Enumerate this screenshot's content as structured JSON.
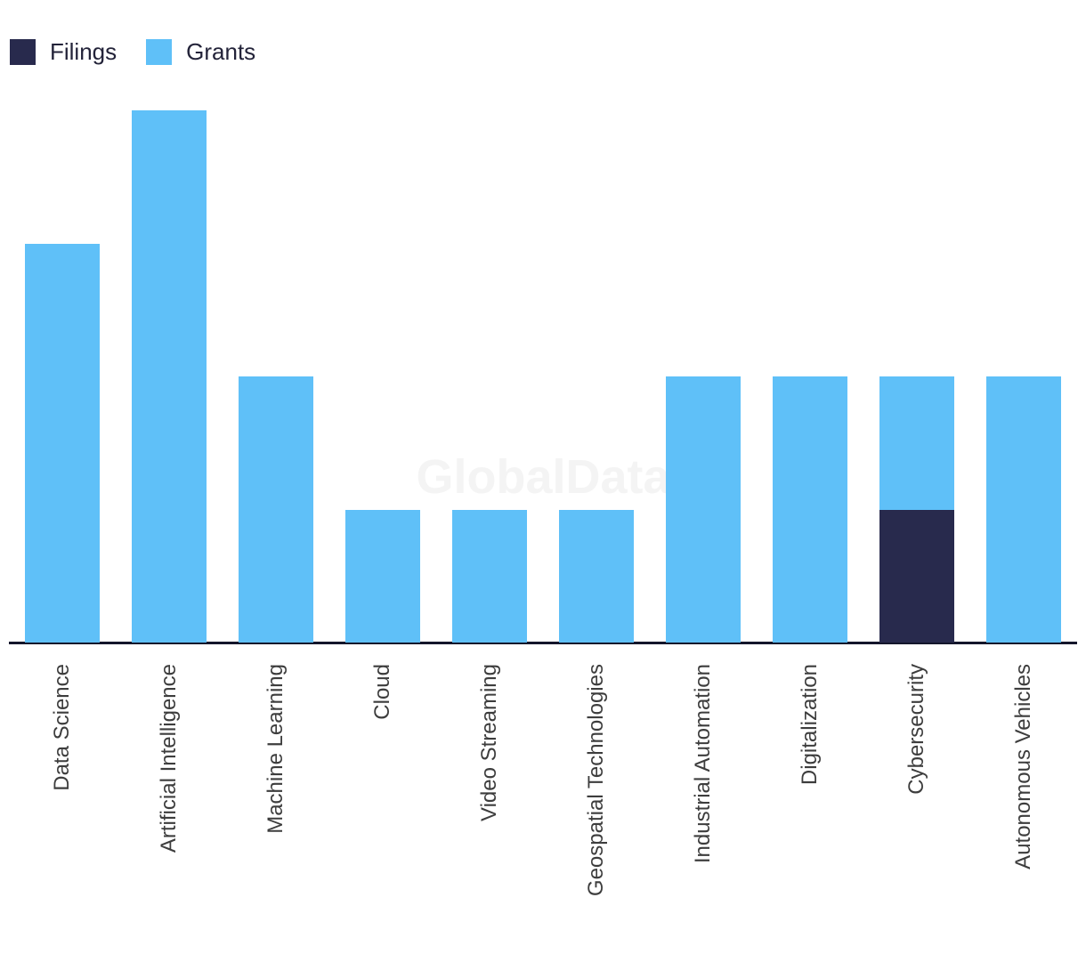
{
  "watermark": "GlobalData",
  "legend": {
    "position": "top-left",
    "items": [
      {
        "label": "Filings",
        "color": "#282a4d"
      },
      {
        "label": "Grants",
        "color": "#5fc0f8"
      }
    ]
  },
  "colors": {
    "filings": "#282a4d",
    "grants": "#5fc0f8",
    "axis_line": "#14162b",
    "x_label_text": "#3d3d3d",
    "legend_text": "#232339",
    "watermark_text": "#f4f4f4",
    "background": "#ffffff"
  },
  "chart_data": {
    "type": "bar",
    "stacked": true,
    "orientation": "vertical",
    "categories": [
      "Data Science",
      "Artificial Intelligence",
      "Machine Learning",
      "Cloud",
      "Video Streaming",
      "Geospatial Technologies",
      "Industrial Automation",
      "Digitalization",
      "Cybersecurity",
      "Autonomous Vehicles"
    ],
    "series": [
      {
        "name": "Filings",
        "color": "#282a4d",
        "values": [
          0,
          0,
          0,
          0,
          0,
          0,
          0,
          0,
          1,
          0
        ]
      },
      {
        "name": "Grants",
        "color": "#5fc0f8",
        "values": [
          3,
          4,
          2,
          1,
          1,
          1,
          2,
          2,
          1,
          2
        ]
      }
    ],
    "title": "",
    "xlabel": "",
    "ylabel": "",
    "ylim": [
      0,
      4
    ],
    "y_axis_visible": false,
    "grid": false,
    "x_label_rotation": -90,
    "legend_position": "top-left"
  }
}
